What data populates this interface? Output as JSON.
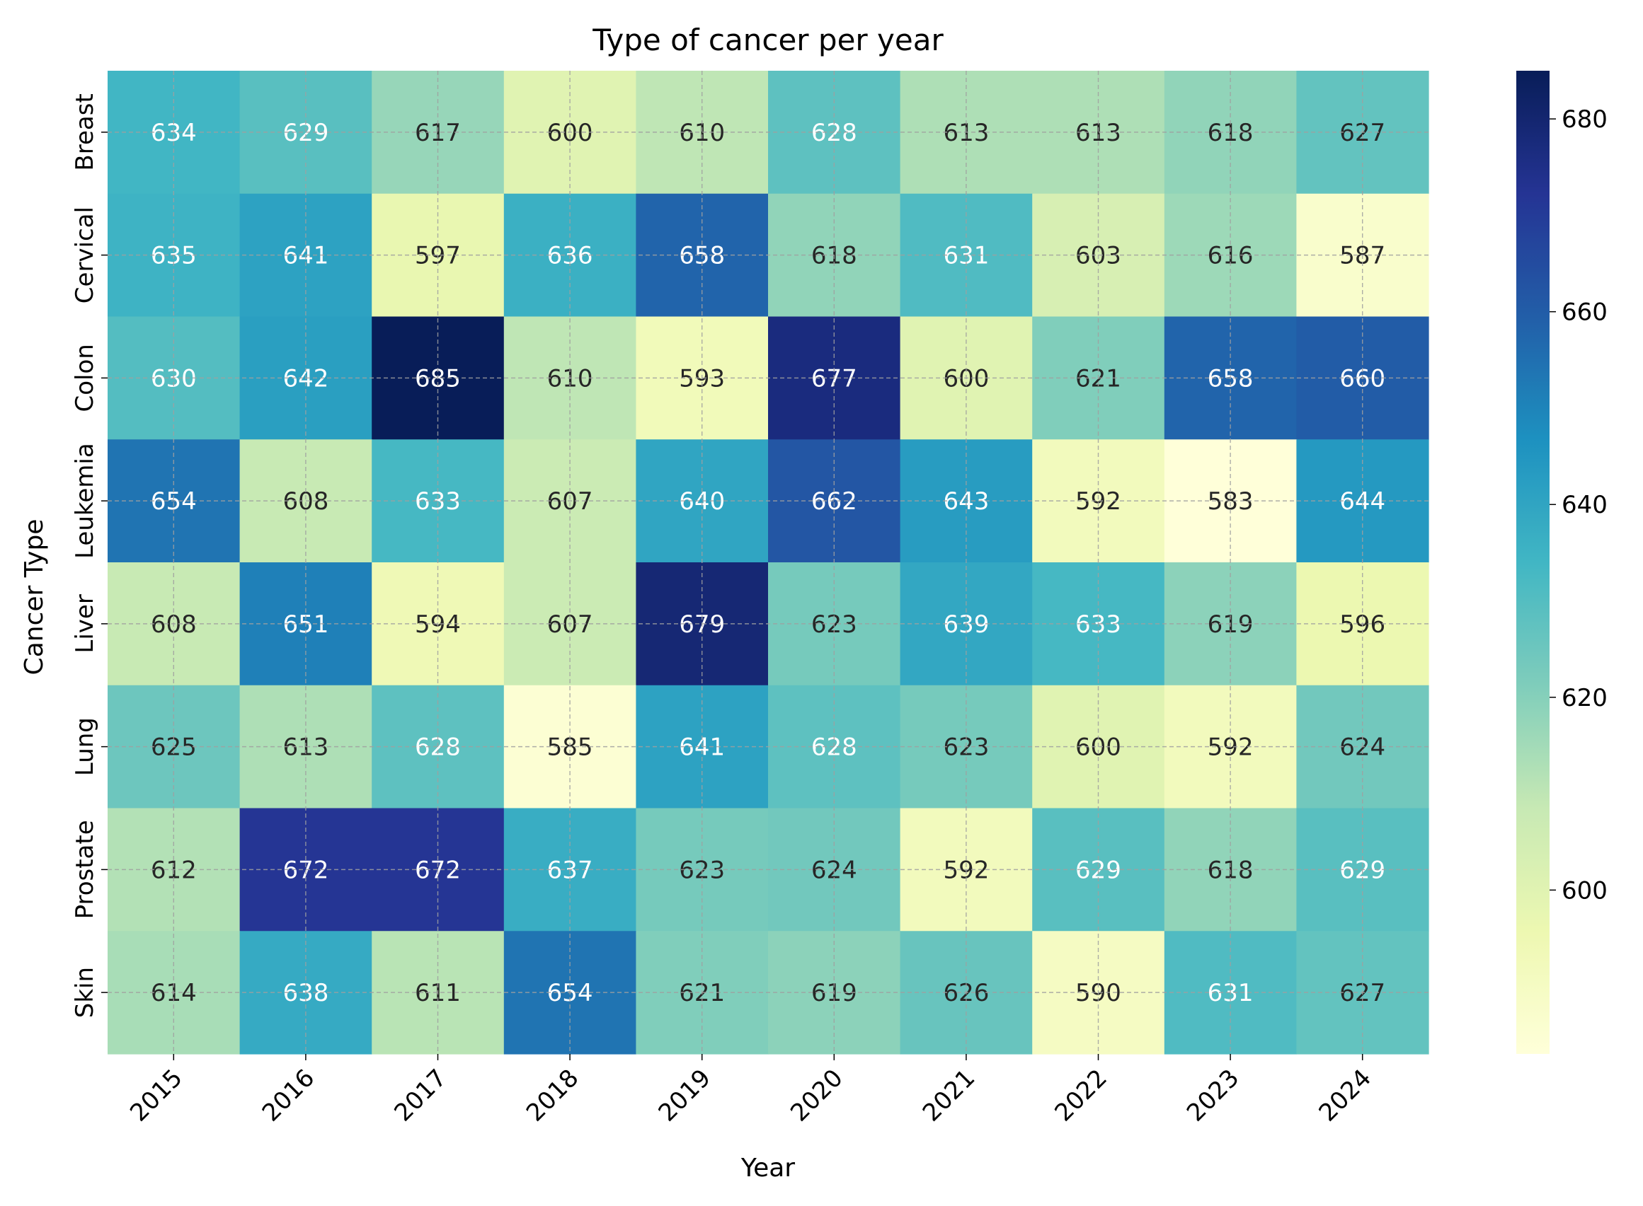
{
  "chart_data": {
    "type": "heatmap",
    "title": "Type of cancer per year",
    "xlabel": "Year",
    "ylabel": "Cancer Type",
    "x": [
      "2015",
      "2016",
      "2017",
      "2018",
      "2019",
      "2020",
      "2021",
      "2022",
      "2023",
      "2024"
    ],
    "y": [
      "Breast",
      "Cervical",
      "Colon",
      "Leukemia",
      "Liver",
      "Lung",
      "Prostate",
      "Skin"
    ],
    "values": [
      [
        634,
        629,
        617,
        600,
        610,
        628,
        613,
        613,
        618,
        627
      ],
      [
        635,
        641,
        597,
        636,
        658,
        618,
        631,
        603,
        616,
        587
      ],
      [
        630,
        642,
        685,
        610,
        593,
        677,
        600,
        621,
        658,
        660
      ],
      [
        654,
        608,
        633,
        607,
        640,
        662,
        643,
        592,
        583,
        644
      ],
      [
        608,
        651,
        594,
        607,
        679,
        623,
        639,
        633,
        619,
        596
      ],
      [
        625,
        613,
        628,
        585,
        641,
        628,
        623,
        600,
        592,
        624
      ],
      [
        612,
        672,
        672,
        637,
        623,
        624,
        592,
        629,
        618,
        629
      ],
      [
        614,
        638,
        611,
        654,
        621,
        619,
        626,
        590,
        631,
        627
      ]
    ],
    "colormap": "YlGnBu",
    "color_range": [
      583,
      685
    ],
    "colorbar_ticks": [
      600,
      620,
      640,
      660,
      680
    ],
    "grid": true,
    "annotations": true
  }
}
